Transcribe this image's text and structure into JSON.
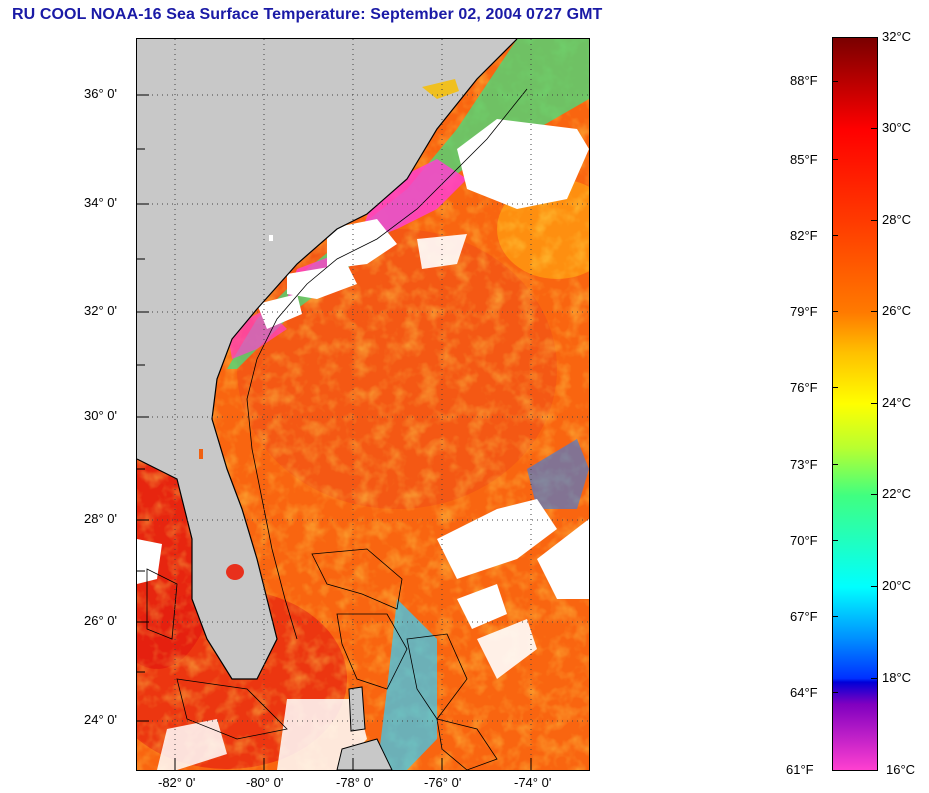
{
  "title": "RU COOL  NOAA-16  Sea Surface Temperature:  September 02, 2004 0727 GMT",
  "map": {
    "lat_labels": [
      "36° 0'",
      "34° 0'",
      "32° 0'",
      "30° 0'",
      "28° 0'",
      "26° 0'",
      "24° 0'"
    ],
    "lon_labels": [
      "-82° 0'",
      "-80° 0'",
      "-78° 0'",
      "-76° 0'",
      "-74° 0'"
    ],
    "land_color": "#c8c8c8",
    "cloud_color": "#ffffff"
  },
  "colorbar": {
    "celsius": [
      "32°C",
      "30°C",
      "28°C",
      "26°C",
      "24°C",
      "22°C",
      "20°C",
      "18°C",
      "16°C"
    ],
    "fahrenheit": [
      "88°F",
      "85°F",
      "82°F",
      "79°F",
      "76°F",
      "73°F",
      "70°F",
      "67°F",
      "64°F",
      "61°F"
    ]
  }
}
